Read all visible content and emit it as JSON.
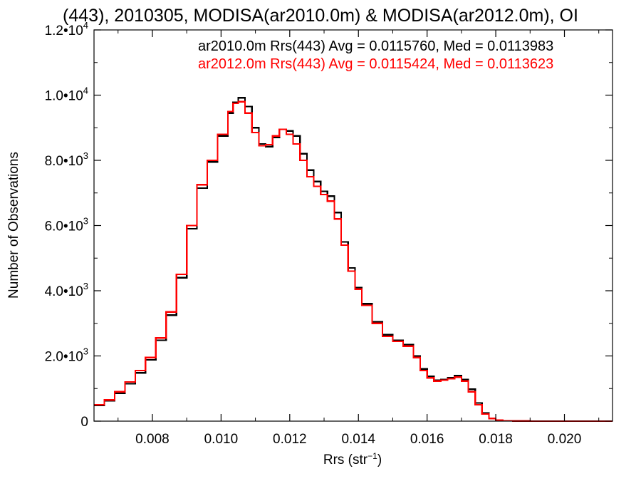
{
  "chart_data": {
    "type": "line",
    "step": true,
    "title": "(443), 2010305, MODISA(ar2010.0m) & MODISA(ar2012.0m), OI",
    "xlabel": "Rrs (str",
    "xlabel_sup": "−1",
    "xlabel_close": ")",
    "ylabel": "Number of Observations",
    "xlim": [
      0.0063,
      0.0214
    ],
    "ylim": [
      0,
      12000
    ],
    "grid": false,
    "x_ticks": [
      {
        "value": 0.008,
        "label": "0.008"
      },
      {
        "value": 0.01,
        "label": "0.010"
      },
      {
        "value": 0.012,
        "label": "0.012"
      },
      {
        "value": 0.014,
        "label": "0.014"
      },
      {
        "value": 0.016,
        "label": "0.016"
      },
      {
        "value": 0.018,
        "label": "0.018"
      },
      {
        "value": 0.02,
        "label": "0.020"
      }
    ],
    "y_ticks": [
      {
        "value": 0,
        "mant": "0",
        "exp": ""
      },
      {
        "value": 2000,
        "mant": "2.0•10",
        "exp": "3"
      },
      {
        "value": 4000,
        "mant": "4.0•10",
        "exp": "3"
      },
      {
        "value": 6000,
        "mant": "6.0•10",
        "exp": "3"
      },
      {
        "value": 8000,
        "mant": "8.0•10",
        "exp": "3"
      },
      {
        "value": 10000,
        "mant": "1.0•10",
        "exp": "4"
      },
      {
        "value": 12000,
        "mant": "1.2•10",
        "exp": "4"
      }
    ],
    "legend": [
      {
        "text": "ar2010.0m Rrs(443) Avg = 0.0115760, Med = 0.0113983",
        "color": "#000000"
      },
      {
        "text": "ar2012.0m Rrs(443) Avg = 0.0115424, Med = 0.0113623",
        "color": "#ff0000"
      }
    ],
    "series": [
      {
        "color": "#000000",
        "x": [
          0.0063,
          0.0066,
          0.0069,
          0.0072,
          0.0075,
          0.0078,
          0.0081,
          0.0084,
          0.0087,
          0.009,
          0.0093,
          0.0096,
          0.0099,
          0.0102,
          0.01035,
          0.0105,
          0.0107,
          0.0109,
          0.0111,
          0.0113,
          0.0115,
          0.0117,
          0.0119,
          0.0121,
          0.0123,
          0.0125,
          0.0127,
          0.0129,
          0.0131,
          0.0133,
          0.0135,
          0.0137,
          0.0139,
          0.0141,
          0.0144,
          0.0147,
          0.015,
          0.0153,
          0.0156,
          0.0158,
          0.016,
          0.0162,
          0.0164,
          0.0166,
          0.0168,
          0.017,
          0.0172,
          0.0174,
          0.0176,
          0.0178,
          0.018,
          0.0182,
          0.0185,
          0.019,
          0.02,
          0.0214
        ],
        "y": [
          480,
          620,
          860,
          1150,
          1480,
          1880,
          2480,
          3250,
          4400,
          5900,
          7150,
          7950,
          8750,
          9450,
          9780,
          9920,
          9650,
          9000,
          8500,
          8420,
          8700,
          8950,
          8900,
          8750,
          8200,
          7700,
          7350,
          7050,
          6900,
          6400,
          5500,
          4700,
          4100,
          3600,
          3050,
          2650,
          2480,
          2350,
          2000,
          1600,
          1380,
          1250,
          1280,
          1330,
          1400,
          1280,
          980,
          560,
          250,
          90,
          35,
          12,
          5,
          2,
          0,
          0
        ]
      },
      {
        "color": "#ff0000",
        "x": [
          0.0063,
          0.0066,
          0.0069,
          0.0072,
          0.0075,
          0.0078,
          0.0081,
          0.0084,
          0.0087,
          0.009,
          0.0093,
          0.0096,
          0.0099,
          0.0102,
          0.01035,
          0.0105,
          0.0107,
          0.0109,
          0.0111,
          0.0113,
          0.0115,
          0.0117,
          0.0119,
          0.0121,
          0.0123,
          0.0125,
          0.0127,
          0.0129,
          0.0131,
          0.0133,
          0.0135,
          0.0137,
          0.0139,
          0.0141,
          0.0144,
          0.0147,
          0.015,
          0.0153,
          0.0156,
          0.0158,
          0.016,
          0.0162,
          0.0164,
          0.0166,
          0.0168,
          0.017,
          0.0172,
          0.0174,
          0.0176,
          0.0178,
          0.018,
          0.0182,
          0.0185,
          0.019,
          0.02,
          0.0214
        ],
        "y": [
          500,
          650,
          900,
          1200,
          1550,
          1950,
          2550,
          3350,
          4500,
          6000,
          7250,
          8000,
          8800,
          9500,
          9750,
          9800,
          9450,
          8850,
          8450,
          8480,
          8750,
          8950,
          8800,
          8500,
          8000,
          7500,
          7200,
          6950,
          6750,
          6200,
          5400,
          4600,
          4050,
          3550,
          3000,
          2600,
          2450,
          2300,
          1950,
          1550,
          1330,
          1230,
          1260,
          1300,
          1350,
          1230,
          900,
          500,
          220,
          80,
          30,
          10,
          4,
          1,
          0,
          0
        ]
      }
    ]
  }
}
